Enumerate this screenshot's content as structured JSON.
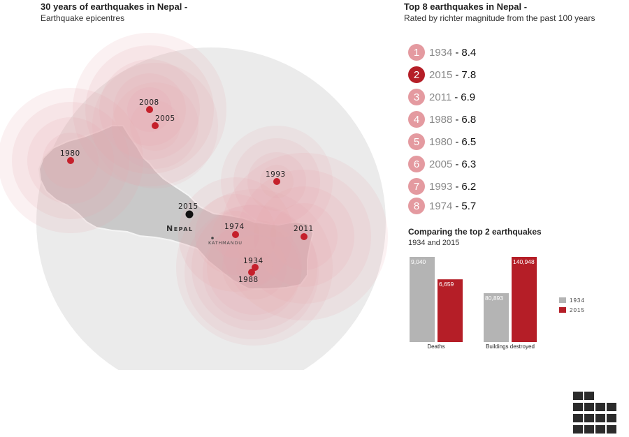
{
  "left_header": {
    "title": "30 years of earthquakes in Nepal -",
    "subtitle": "Earthquake epicentres"
  },
  "right_header": {
    "title": "Top 8 earthquakes in Nepal -",
    "subtitle": "Rated by richter magnitude from the past 100 years"
  },
  "map": {
    "country_label": "Nepal",
    "capital_label": "KATHMANDU",
    "epicentres": [
      {
        "year": "1934"
      },
      {
        "year": "2015"
      },
      {
        "year": "2011"
      },
      {
        "year": "1988"
      },
      {
        "year": "1980"
      },
      {
        "year": "2005"
      },
      {
        "year": "1993"
      },
      {
        "year": "1974"
      },
      {
        "year": "2008"
      }
    ]
  },
  "rankings": [
    {
      "rank": "1",
      "year": "1934",
      "magnitude": "8.4",
      "color": "#e49aa0"
    },
    {
      "rank": "2",
      "year": "2015",
      "magnitude": "7.8",
      "color": "#b51e27"
    },
    {
      "rank": "3",
      "year": "2011",
      "magnitude": "6.9",
      "color": "#e49aa0"
    },
    {
      "rank": "4",
      "year": "1988",
      "magnitude": "6.8",
      "color": "#e49aa0"
    },
    {
      "rank": "5",
      "year": "1980",
      "magnitude": "6.5",
      "color": "#e49aa0"
    },
    {
      "rank": "6",
      "year": "2005",
      "magnitude": "6.3",
      "color": "#e49aa0"
    },
    {
      "rank": "7",
      "year": "1993",
      "magnitude": "6.2",
      "color": "#e49aa0"
    },
    {
      "rank": "8",
      "year": "1974",
      "magnitude": "5.7",
      "color": "#e49aa0"
    }
  ],
  "rank_separator": "-",
  "comparison_header": {
    "title": "Comparing the top 2 earthquakes",
    "subtitle": "1934 and 2015"
  },
  "chart_data": {
    "type": "bar",
    "categories": [
      "Deaths",
      "Buildings destroyed"
    ],
    "series": [
      {
        "name": "1934",
        "color": "#b4b4b4",
        "values": [
          9040,
          80893
        ],
        "labels": [
          "9,040",
          "80,893"
        ]
      },
      {
        "name": "2015",
        "color": "#b51e27",
        "values": [
          6659,
          140948
        ],
        "labels": [
          "6,659",
          "140,948"
        ]
      }
    ],
    "title": "Comparing the top 2 earthquakes",
    "subtitle": "1934 and 2015",
    "legend_position": "right",
    "grid": false,
    "scale_note": "each category group has its own independent scale"
  },
  "colors": {
    "accent": "#b51e27",
    "pink_soft": "#e49aa0",
    "map_grey": "#c9c9c9",
    "circle_grey": "#ececec"
  }
}
